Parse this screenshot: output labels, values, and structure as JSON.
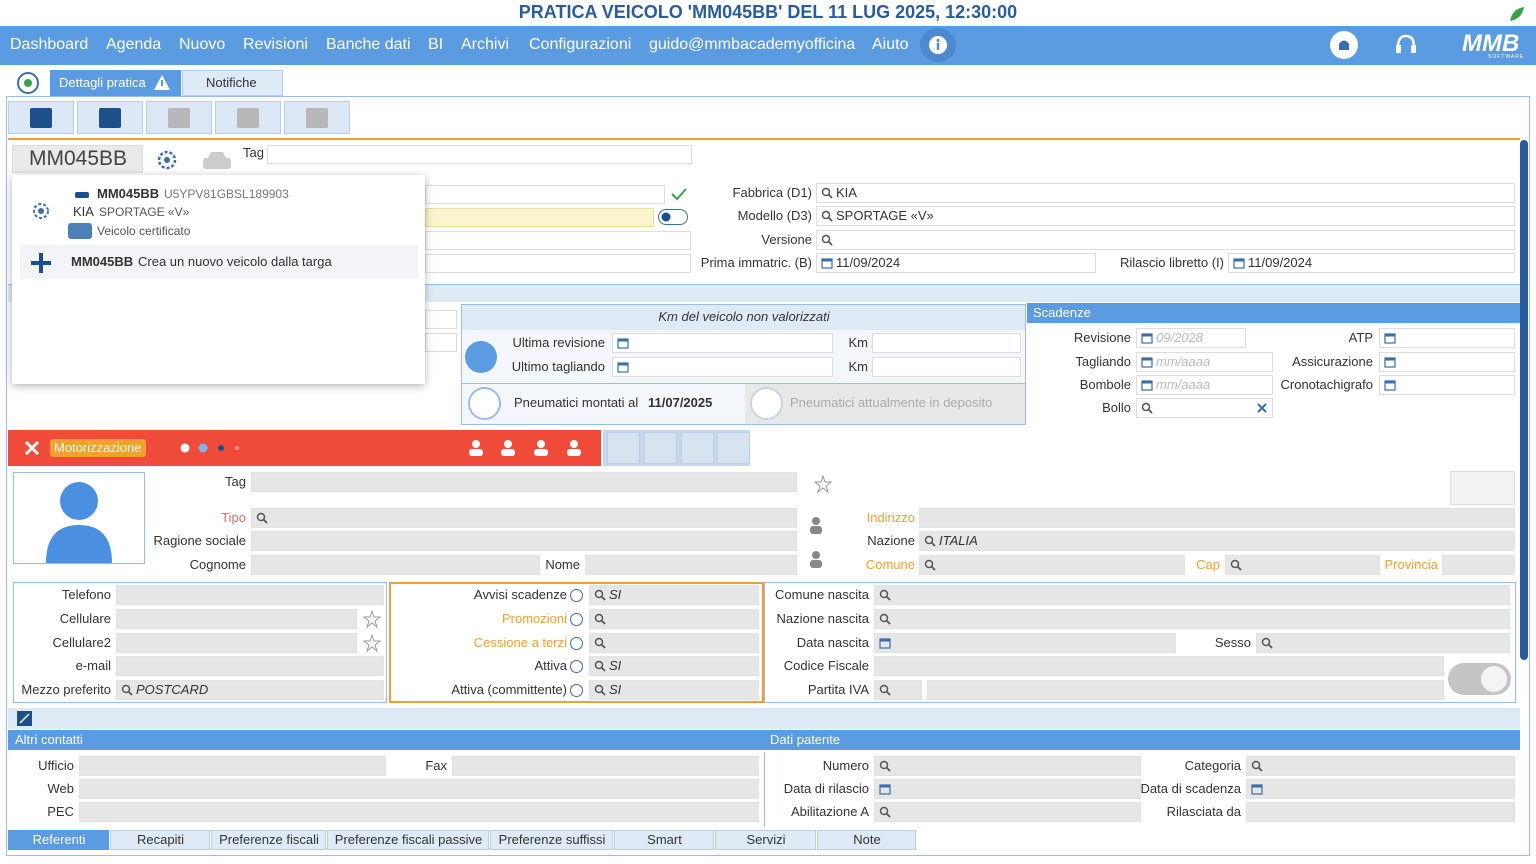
{
  "header": {
    "title": "PRATICA VEICOLO 'MM045BB' DEL 11 LUG 2025, 12:30:00"
  },
  "nav": {
    "items": [
      "Dashboard",
      "Agenda",
      "Nuovo",
      "Revisioni",
      "Banche dati",
      "BI",
      "Archivi",
      "Configurazioni",
      "guido@mmbacademyofficina",
      "Aiuto"
    ],
    "logo": "MMB",
    "logo_sub": "SOFTWARE"
  },
  "tabs": [
    "Dettagli pratica",
    "Notifiche"
  ],
  "vehicle": {
    "plate": "MM045BB",
    "tag_label": "Tag",
    "suggestions": {
      "plate": "MM045BB",
      "vin": "U5YPV81GBSL189903",
      "make": "KIA",
      "model": "SPORTAGE «V»",
      "status": "Veicolo certificato",
      "new_plate": "MM045BB",
      "new_label": "Crea un nuovo veicolo dalla targa"
    },
    "fields": [
      {
        "label": "Fabbrica (D1)",
        "value": "KIA"
      },
      {
        "label": "Modello (D3)",
        "value": "SPORTAGE «V»"
      },
      {
        "label": "Versione"
      },
      {
        "label": "Prima immatric. (B)",
        "value": "11/09/2024"
      },
      {
        "label": "Rilascio libretto (I)",
        "value": "11/09/2024"
      }
    ]
  },
  "km": {
    "title": "Km del veicolo non valorizzati",
    "rows": [
      {
        "label": "Ultima revisione",
        "km_label": "Km"
      },
      {
        "label": "Ultimo tagliando",
        "km_label": "Km"
      }
    ],
    "tyres_label": "Pneumatici montati al",
    "tyres_date": "11/07/2025",
    "deposit": "Pneumatici attualmente in deposito"
  },
  "deadlines": {
    "title": "Scadenze",
    "fields": [
      {
        "label": "Revisione",
        "placeholder": "09/2028"
      },
      {
        "label": "ATP"
      },
      {
        "label": "Tagliando",
        "placeholder": "mm/aaaa"
      },
      {
        "label": "Assicurazione"
      },
      {
        "label": "Bombole",
        "placeholder": "mm/aaaa"
      },
      {
        "label": "Cronotachigrafo"
      },
      {
        "label": "Bollo"
      }
    ]
  },
  "customer": {
    "section": "Motorizzazione",
    "fields": [
      {
        "label": "Tag"
      },
      {
        "label": "Tipo"
      },
      {
        "label": "Ragione sociale"
      },
      {
        "label": "Cognome"
      },
      {
        "label": "Nome"
      },
      {
        "label": "Indirizzo"
      },
      {
        "label": "Nazione",
        "value": "ITALIA"
      },
      {
        "label": "Comune"
      },
      {
        "label": "Cap"
      },
      {
        "label": "Provincia"
      }
    ]
  },
  "contacts": {
    "fields": [
      {
        "label": "Telefono"
      },
      {
        "label": "Cellulare"
      },
      {
        "label": "Cellulare2"
      },
      {
        "label": "e-mail"
      },
      {
        "label": "Mezzo preferito",
        "value": "POSTCARD"
      }
    ]
  },
  "consents": {
    "fields": [
      {
        "label": "Avvisi scadenze",
        "value": "SI"
      },
      {
        "label": "Promozioni"
      },
      {
        "label": "Cessione a terzi"
      },
      {
        "label": "Attiva",
        "value": "SI"
      },
      {
        "label": "Attiva (committente)",
        "value": "SI"
      }
    ]
  },
  "personal": {
    "fields": [
      {
        "label": "Comune nascita"
      },
      {
        "label": "Nazione nascita"
      },
      {
        "label": "Data nascita"
      },
      {
        "label": "Sesso"
      },
      {
        "label": "Codice Fiscale"
      },
      {
        "label": "Partita IVA"
      }
    ]
  },
  "other_contacts": {
    "title": "Altri contatti",
    "fields": [
      {
        "label": "Ufficio"
      },
      {
        "label": "Fax"
      },
      {
        "label": "Web"
      },
      {
        "label": "PEC"
      }
    ]
  },
  "license": {
    "title": "Dati patente",
    "fields": [
      {
        "label": "Numero"
      },
      {
        "label": "Categoria"
      },
      {
        "label": "Data di rilascio"
      },
      {
        "label": "Data di scadenza"
      },
      {
        "label": "Abilitazione A"
      },
      {
        "label": "Rilasciata da"
      }
    ]
  },
  "bottom_tabs": [
    "Referenti",
    "Recapiti",
    "Preferenze fiscali",
    "Preferenze fiscali passive",
    "Preferenze suffissi",
    "Smart",
    "Servizi",
    "Note"
  ]
}
